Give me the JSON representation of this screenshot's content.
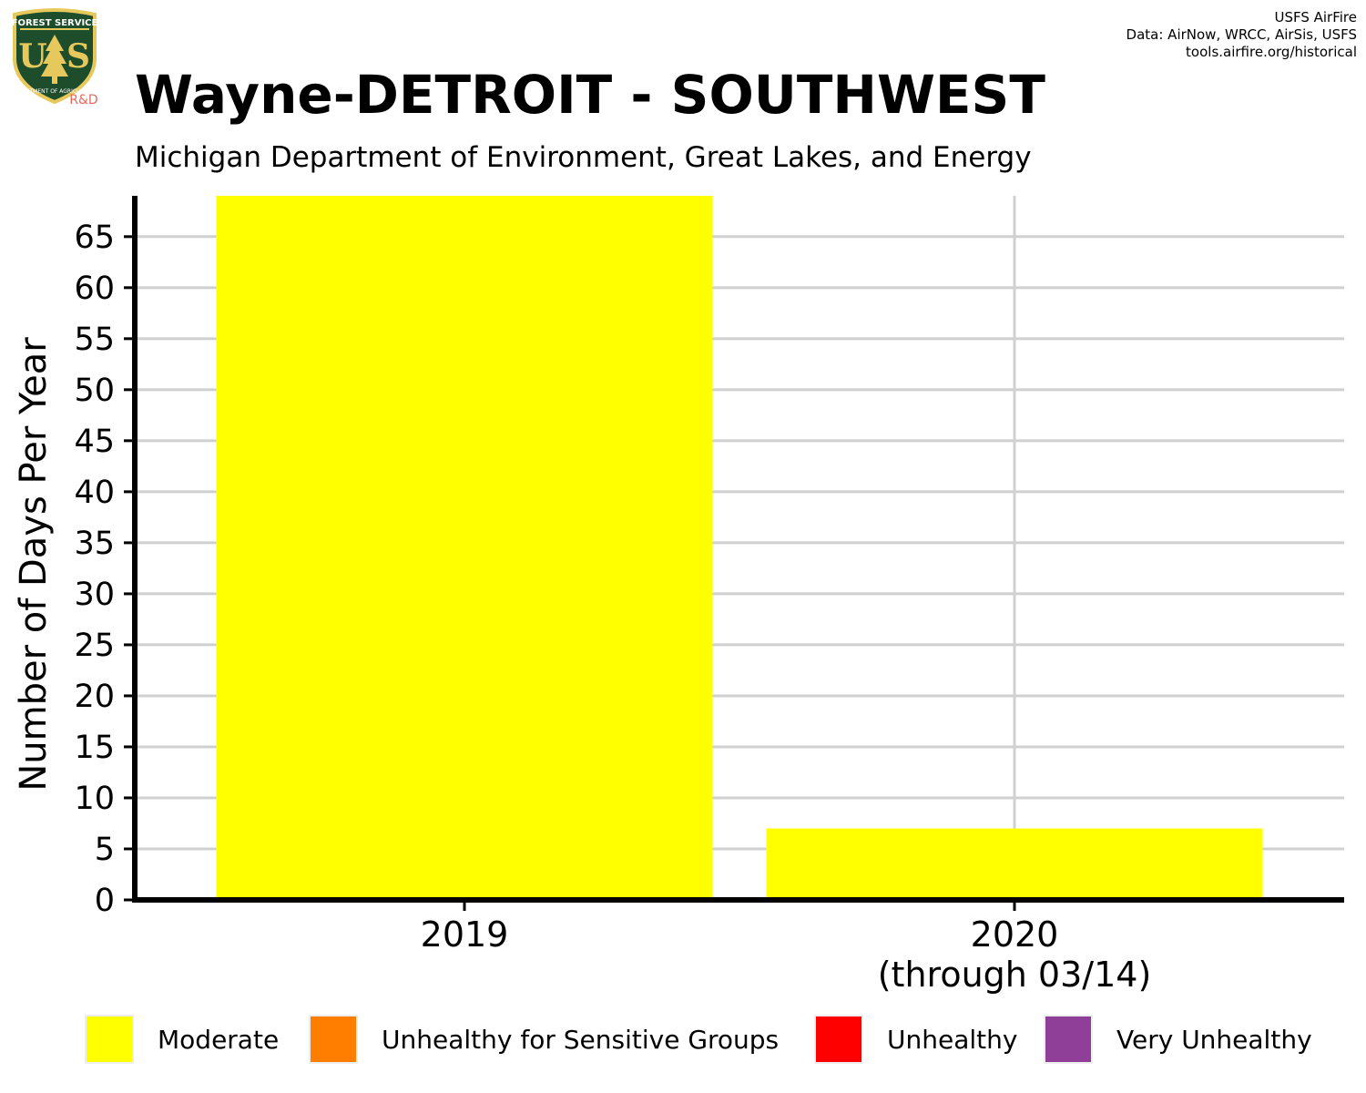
{
  "header": {
    "credits": [
      "USFS AirFire",
      "Data: AirNow, WRCC, AirSis, USFS",
      "tools.airfire.org/historical"
    ],
    "logo": {
      "top_text": "FOREST SERVICE",
      "letters": "US",
      "bottom_text": "DEPARTMENT OF AGRICULTURE",
      "badge": "R&D",
      "badge_color": "#e8685a",
      "shield_color": "#1e4d2b",
      "trim_color": "#e6c85c"
    }
  },
  "chart_data": {
    "type": "bar",
    "title": "Wayne-DETROIT - SOUTHWEST",
    "subtitle": "Michigan Department of Environment, Great Lakes, and Energy",
    "ylabel": "Number of Days Per Year",
    "xlabel": "",
    "categories": [
      [
        "2019"
      ],
      [
        "2020",
        "(through 03/14)"
      ]
    ],
    "series": [
      {
        "name": "Moderate",
        "color": "#ffff00",
        "values": [
          69,
          7
        ]
      },
      {
        "name": "Unhealthy for Sensitive Groups",
        "color": "#ff7e00",
        "values": [
          0,
          0
        ]
      },
      {
        "name": "Unhealthy",
        "color": "#ff0000",
        "values": [
          0,
          0
        ]
      },
      {
        "name": "Very Unhealthy",
        "color": "#8f3f97",
        "values": [
          0,
          0
        ]
      }
    ],
    "ylim": [
      0,
      69
    ],
    "yticks": [
      0,
      5,
      10,
      15,
      20,
      25,
      30,
      35,
      40,
      45,
      50,
      55,
      60,
      65
    ],
    "grid": true,
    "legend_position": "bottom"
  }
}
